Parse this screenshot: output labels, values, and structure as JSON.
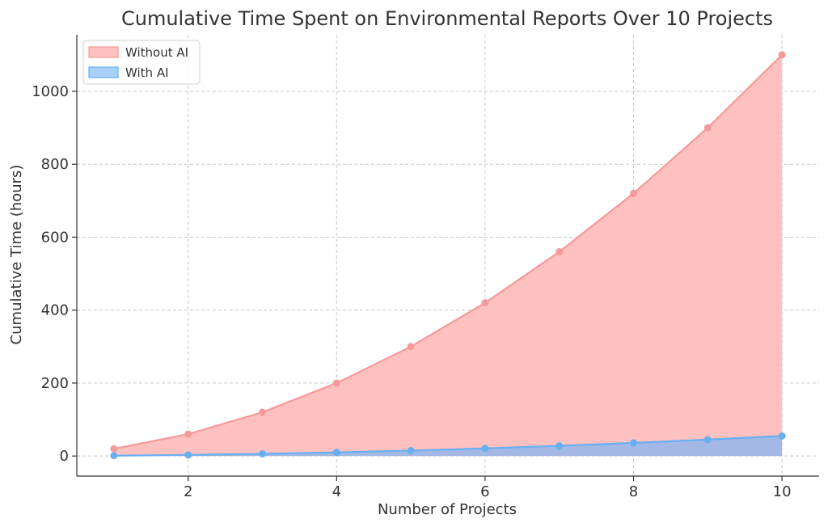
{
  "chart_data": {
    "type": "area",
    "title": "Cumulative Time Spent on Environmental Reports Over 10 Projects",
    "xlabel": "Number of Projects",
    "ylabel": "Cumulative Time (hours)",
    "x": [
      1,
      2,
      3,
      4,
      5,
      6,
      7,
      8,
      9,
      10
    ],
    "xlim": [
      0.5,
      10.5
    ],
    "ylim": [
      -55,
      1155
    ],
    "xticks": [
      2,
      4,
      6,
      8,
      10
    ],
    "yticks": [
      0,
      200,
      400,
      600,
      800,
      1000
    ],
    "grid": true,
    "legend_position": "top-left",
    "series": [
      {
        "name": "Without AI",
        "values": [
          20,
          60,
          120,
          200,
          300,
          420,
          560,
          720,
          900,
          1100
        ],
        "line_color": "#f59a9a",
        "fill_color": "#ffc0c0"
      },
      {
        "name": "With AI",
        "values": [
          1,
          3,
          6,
          10,
          15,
          21,
          28,
          36,
          45,
          55
        ],
        "line_color": "#66b0f2",
        "fill_color": "#a4b8e6",
        "legend_fill": "#a8d0f8"
      }
    ]
  }
}
